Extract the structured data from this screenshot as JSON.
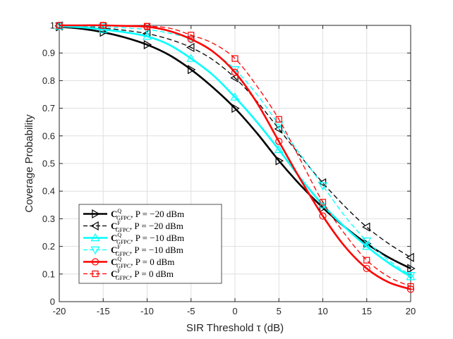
{
  "chart_data": {
    "type": "line",
    "xlabel": "SIR Threshold τ (dB)",
    "ylabel": "Coverage Probability",
    "xlim": [
      -20,
      20
    ],
    "ylim": [
      0,
      1
    ],
    "xticks": [
      -20,
      -15,
      -10,
      -5,
      0,
      5,
      10,
      15,
      20
    ],
    "xtick_labels": [
      "-20",
      "-15",
      "-10",
      "-5",
      "0",
      "5",
      "10",
      "15",
      "20"
    ],
    "yticks": [
      0,
      0.1,
      0.2,
      0.3,
      0.4,
      0.5,
      0.6,
      0.7,
      0.8,
      0.9,
      1
    ],
    "ytick_labels": [
      "0",
      "0.1",
      "0.2",
      "0.3",
      "0.4",
      "0.5",
      "0.6",
      "0.7",
      "0.8",
      "0.9",
      "1"
    ],
    "grid": true,
    "legend_position": "bottom-left",
    "x": [
      -20,
      -15,
      -10,
      -5,
      0,
      5,
      10,
      15,
      20
    ],
    "series": [
      {
        "name": "C^Q_GFPC, P = −20 dBm",
        "name_main": "C",
        "name_sup": "Q",
        "name_sub": "GFPC",
        "name_rest": ", P = −20 dBm",
        "color": "#000000",
        "dash": "solid",
        "marker": "triangle-right",
        "line_weight": "thick",
        "values": [
          0.995,
          0.975,
          0.93,
          0.84,
          0.7,
          0.51,
          0.34,
          0.21,
          0.12
        ],
        "curve": [
          [
            -20,
            0.995
          ],
          [
            -17.5,
            0.988
          ],
          [
            -15,
            0.975
          ],
          [
            -12.5,
            0.956
          ],
          [
            -10,
            0.93
          ],
          [
            -7.5,
            0.893
          ],
          [
            -5,
            0.84
          ],
          [
            -2.5,
            0.775
          ],
          [
            0,
            0.7
          ],
          [
            2.5,
            0.61
          ],
          [
            5,
            0.51
          ],
          [
            7.5,
            0.42
          ],
          [
            10,
            0.34
          ],
          [
            12.5,
            0.27
          ],
          [
            15,
            0.21
          ],
          [
            17.5,
            0.16
          ],
          [
            20,
            0.12
          ]
        ]
      },
      {
        "name": "C^F_GFPC, P = −20 dBm",
        "name_main": "C",
        "name_sup": "F",
        "name_sub": "GFPC",
        "name_rest": ", P = −20 dBm",
        "color": "#000000",
        "dash": "dashed",
        "marker": "triangle-left",
        "line_weight": "thin",
        "values": [
          0.998,
          0.99,
          0.97,
          0.92,
          0.81,
          0.625,
          0.43,
          0.27,
          0.16
        ],
        "curve": [
          [
            -20,
            0.998
          ],
          [
            -17.5,
            0.995
          ],
          [
            -15,
            0.99
          ],
          [
            -12.5,
            0.982
          ],
          [
            -10,
            0.97
          ],
          [
            -7.5,
            0.95
          ],
          [
            -5,
            0.92
          ],
          [
            -2.5,
            0.875
          ],
          [
            0,
            0.81
          ],
          [
            2.5,
            0.725
          ],
          [
            5,
            0.625
          ],
          [
            7.5,
            0.525
          ],
          [
            10,
            0.43
          ],
          [
            12.5,
            0.345
          ],
          [
            15,
            0.27
          ],
          [
            17.5,
            0.21
          ],
          [
            20,
            0.16
          ]
        ]
      },
      {
        "name": "C^Q_GFPC, P = −10 dBm",
        "name_main": "C",
        "name_sup": "Q",
        "name_sub": "GFPC",
        "name_rest": ", P = −10 dBm",
        "color": "#00FFFF",
        "dash": "solid",
        "marker": "triangle-up",
        "line_weight": "thick",
        "values": [
          0.997,
          0.985,
          0.96,
          0.88,
          0.74,
          0.55,
          0.35,
          0.2,
          0.09
        ],
        "curve": [
          [
            -20,
            0.997
          ],
          [
            -17.5,
            0.993
          ],
          [
            -15,
            0.985
          ],
          [
            -12.5,
            0.975
          ],
          [
            -10,
            0.96
          ],
          [
            -7.5,
            0.93
          ],
          [
            -5,
            0.88
          ],
          [
            -2.5,
            0.82
          ],
          [
            0,
            0.74
          ],
          [
            2.5,
            0.65
          ],
          [
            5,
            0.55
          ],
          [
            7.5,
            0.445
          ],
          [
            10,
            0.35
          ],
          [
            12.5,
            0.27
          ],
          [
            15,
            0.2
          ],
          [
            17.5,
            0.14
          ],
          [
            20,
            0.09
          ]
        ]
      },
      {
        "name": "C^F_GFPC, P = −10 dBm",
        "name_main": "C",
        "name_sup": "F",
        "name_sub": "GFPC",
        "name_rest": ", P = −10 dBm",
        "color": "#00FFFF",
        "dash": "dashed",
        "marker": "triangle-down",
        "line_weight": "thin",
        "values": [
          0.999,
          0.995,
          0.985,
          0.95,
          0.84,
          0.64,
          0.42,
          0.22,
          0.095
        ],
        "curve": [
          [
            -20,
            0.999
          ],
          [
            -17.5,
            0.997
          ],
          [
            -15,
            0.995
          ],
          [
            -12.5,
            0.991
          ],
          [
            -10,
            0.985
          ],
          [
            -7.5,
            0.972
          ],
          [
            -5,
            0.95
          ],
          [
            -2.5,
            0.905
          ],
          [
            0,
            0.84
          ],
          [
            2.5,
            0.75
          ],
          [
            5,
            0.64
          ],
          [
            7.5,
            0.53
          ],
          [
            10,
            0.42
          ],
          [
            12.5,
            0.31
          ],
          [
            15,
            0.22
          ],
          [
            17.5,
            0.15
          ],
          [
            20,
            0.095
          ]
        ]
      },
      {
        "name": "C^Q_GFPC, P = 0 dBm",
        "name_main": "C",
        "name_sup": "Q",
        "name_sub": "GFPC",
        "name_rest": ", P = 0 dBm",
        "color": "#FF0000",
        "dash": "solid",
        "marker": "circle",
        "line_weight": "thick",
        "values": [
          1.0,
          1.0,
          0.995,
          0.95,
          0.83,
          0.58,
          0.31,
          0.12,
          0.045
        ],
        "curve": [
          [
            -20,
            1.0
          ],
          [
            -17.5,
            1.0
          ],
          [
            -15,
            1.0
          ],
          [
            -12.5,
            0.998
          ],
          [
            -10,
            0.995
          ],
          [
            -7.5,
            0.98
          ],
          [
            -5,
            0.95
          ],
          [
            -2.5,
            0.905
          ],
          [
            0,
            0.83
          ],
          [
            2.5,
            0.72
          ],
          [
            5,
            0.58
          ],
          [
            7.5,
            0.44
          ],
          [
            10,
            0.31
          ],
          [
            12.5,
            0.2
          ],
          [
            15,
            0.12
          ],
          [
            17.5,
            0.07
          ],
          [
            20,
            0.045
          ]
        ]
      },
      {
        "name": "C^F_GFPC, P = 0 dBm",
        "name_main": "C",
        "name_sup": "F",
        "name_sub": "GFPC",
        "name_rest": ", P = 0 dBm",
        "color": "#FF0000",
        "dash": "dashed",
        "marker": "square",
        "line_weight": "thin",
        "values": [
          1.0,
          1.0,
          0.997,
          0.965,
          0.88,
          0.66,
          0.36,
          0.15,
          0.055
        ],
        "curve": [
          [
            -20,
            1.0
          ],
          [
            -17.5,
            1.0
          ],
          [
            -15,
            1.0
          ],
          [
            -12.5,
            0.999
          ],
          [
            -10,
            0.997
          ],
          [
            -7.5,
            0.99
          ],
          [
            -5,
            0.965
          ],
          [
            -2.5,
            0.935
          ],
          [
            0,
            0.88
          ],
          [
            2.5,
            0.78
          ],
          [
            5,
            0.66
          ],
          [
            7.5,
            0.51
          ],
          [
            10,
            0.36
          ],
          [
            12.5,
            0.245
          ],
          [
            15,
            0.15
          ],
          [
            17.5,
            0.09
          ],
          [
            20,
            0.055
          ]
        ]
      }
    ]
  }
}
